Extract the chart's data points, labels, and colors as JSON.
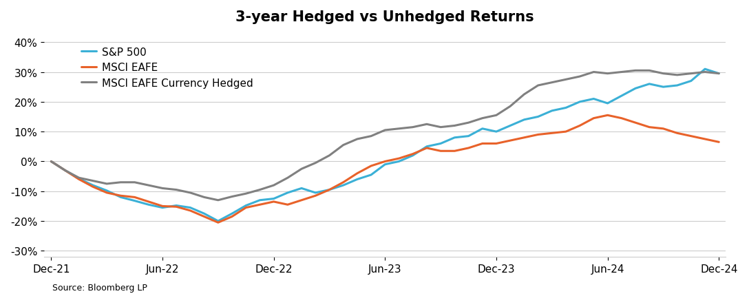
{
  "title": "3-year Hedged vs Unhedged Returns",
  "source": "Source: Bloomberg LP",
  "ylim": [
    -0.32,
    0.44
  ],
  "yticks": [
    -0.3,
    -0.2,
    -0.1,
    0.0,
    0.1,
    0.2,
    0.3,
    0.4
  ],
  "xtick_labels": [
    "Dec-21",
    "Jun-22",
    "Dec-22",
    "Jun-23",
    "Dec-23",
    "Jun-24",
    "Dec-24"
  ],
  "background_color": "#ffffff",
  "grid_color": "#cccccc",
  "series": [
    {
      "label": "S&P 500",
      "color": "#3BB0D6",
      "linewidth": 2.2,
      "data": [
        0.0,
        -0.03,
        -0.058,
        -0.08,
        -0.098,
        -0.12,
        -0.132,
        -0.145,
        -0.155,
        -0.148,
        -0.155,
        -0.175,
        -0.2,
        -0.175,
        -0.148,
        -0.13,
        -0.125,
        -0.105,
        -0.09,
        -0.105,
        -0.095,
        -0.08,
        -0.06,
        -0.045,
        -0.01,
        0.0,
        0.02,
        0.05,
        0.06,
        0.08,
        0.085,
        0.11,
        0.1,
        0.12,
        0.14,
        0.15,
        0.17,
        0.18,
        0.2,
        0.21,
        0.195,
        0.22,
        0.245,
        0.26,
        0.25,
        0.255,
        0.27,
        0.31,
        0.295
      ]
    },
    {
      "label": "MSCI EAFE",
      "color": "#E8622A",
      "linewidth": 2.2,
      "data": [
        0.0,
        -0.03,
        -0.06,
        -0.085,
        -0.105,
        -0.115,
        -0.12,
        -0.135,
        -0.15,
        -0.152,
        -0.165,
        -0.185,
        -0.205,
        -0.185,
        -0.155,
        -0.145,
        -0.135,
        -0.145,
        -0.13,
        -0.115,
        -0.095,
        -0.07,
        -0.04,
        -0.015,
        0.0,
        0.01,
        0.025,
        0.045,
        0.035,
        0.035,
        0.045,
        0.06,
        0.06,
        0.07,
        0.08,
        0.09,
        0.095,
        0.1,
        0.12,
        0.145,
        0.155,
        0.145,
        0.13,
        0.115,
        0.11,
        0.095,
        0.085,
        0.075,
        0.065
      ]
    },
    {
      "label": "MSCI EAFE Currency Hedged",
      "color": "#808080",
      "linewidth": 2.2,
      "data": [
        0.0,
        -0.03,
        -0.055,
        -0.065,
        -0.075,
        -0.07,
        -0.07,
        -0.08,
        -0.09,
        -0.095,
        -0.105,
        -0.12,
        -0.13,
        -0.118,
        -0.108,
        -0.095,
        -0.08,
        -0.055,
        -0.025,
        -0.005,
        0.02,
        0.055,
        0.075,
        0.085,
        0.105,
        0.11,
        0.115,
        0.125,
        0.115,
        0.12,
        0.13,
        0.145,
        0.155,
        0.185,
        0.225,
        0.255,
        0.265,
        0.275,
        0.285,
        0.3,
        0.295,
        0.3,
        0.305,
        0.305,
        0.295,
        0.29,
        0.295,
        0.3,
        0.295
      ]
    }
  ]
}
